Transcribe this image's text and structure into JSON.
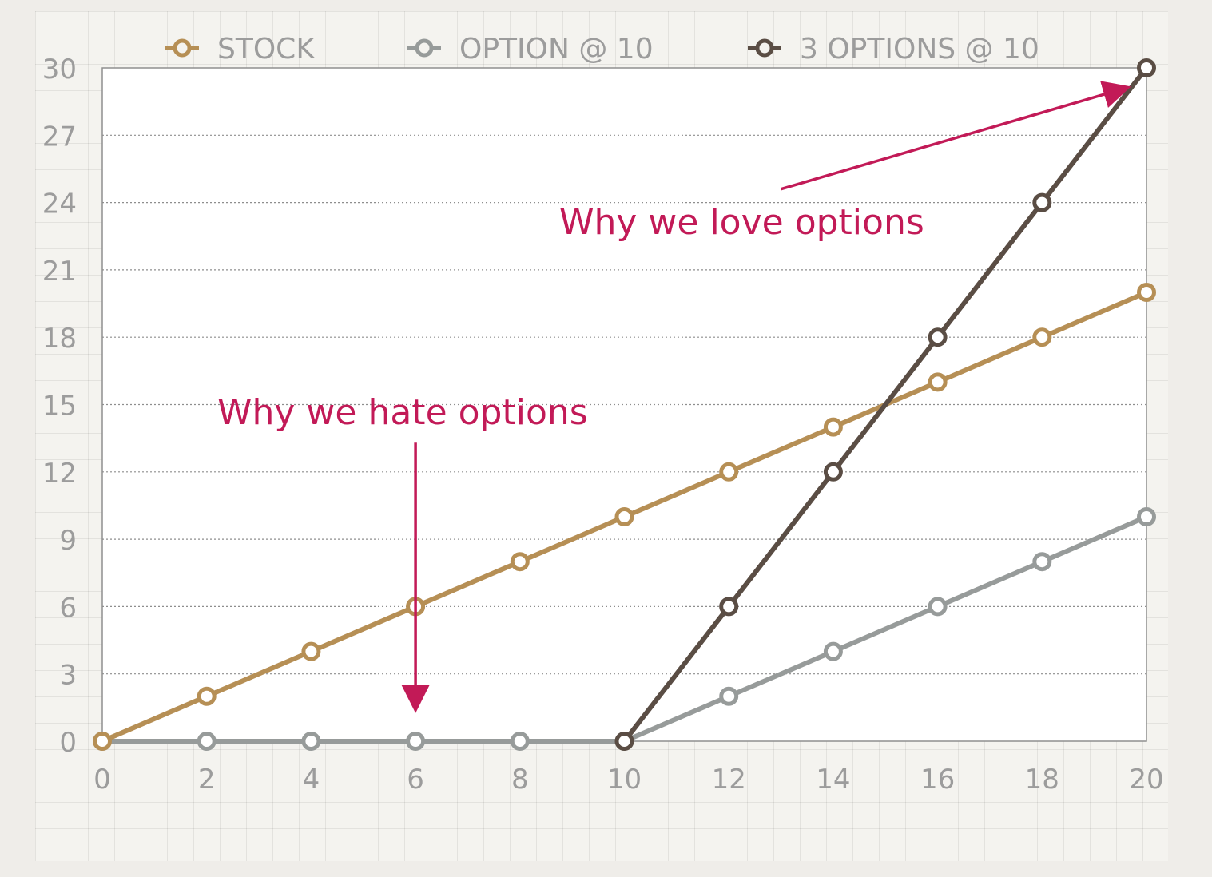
{
  "chart_data": {
    "type": "line",
    "title": "",
    "xlabel": "",
    "ylabel": "",
    "x": [
      0,
      2,
      4,
      6,
      8,
      10,
      12,
      14,
      16,
      18,
      20
    ],
    "xlim": [
      0,
      20
    ],
    "ylim": [
      0,
      30
    ],
    "x_ticks": [
      0,
      2,
      4,
      6,
      8,
      10,
      12,
      14,
      16,
      18,
      20
    ],
    "y_ticks": [
      0,
      3,
      6,
      9,
      12,
      15,
      18,
      21,
      24,
      27,
      30
    ],
    "grid": "horizontal dotted",
    "legend_position": "top",
    "series": [
      {
        "name": "STOCK",
        "color": "#b68f55",
        "values": [
          0,
          2,
          4,
          6,
          8,
          10,
          12,
          14,
          16,
          18,
          20
        ]
      },
      {
        "name": "OPTION @ 10",
        "color": "#979b9a",
        "values": [
          0,
          0,
          0,
          0,
          0,
          0,
          2,
          4,
          6,
          8,
          10
        ]
      },
      {
        "name": "3 OPTIONS @ 10",
        "color": "#5a4d44",
        "values": [
          null,
          null,
          null,
          null,
          null,
          0,
          6,
          12,
          18,
          24,
          30
        ]
      }
    ],
    "annotations": [
      {
        "text": "Why we love options",
        "color": "#c21a57",
        "arrow_from": [
          13,
          24.6
        ],
        "arrow_to": [
          19.6,
          29.1
        ]
      },
      {
        "text": "Why we hate options",
        "color": "#c21a57",
        "arrow_from": [
          6,
          13.3
        ],
        "arrow_to": [
          6,
          1.5
        ]
      }
    ]
  }
}
